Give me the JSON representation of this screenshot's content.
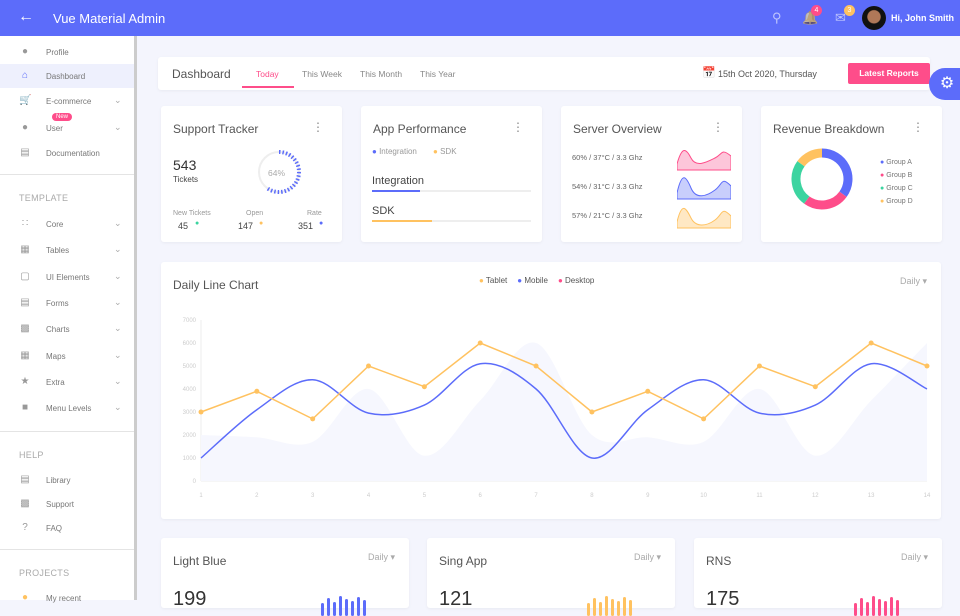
{
  "header": {
    "title": "Vue Material Admin",
    "greeting": "Hi, John Smith",
    "notifications": "4",
    "messages": "3",
    "color": "#5c6cfa"
  },
  "sidebar": {
    "items": [
      {
        "label": "Profile",
        "icon": "account-icon"
      },
      {
        "label": "Dashboard",
        "icon": "home-icon"
      },
      {
        "label": "E-commerce",
        "icon": "cart-icon"
      },
      {
        "label": "User",
        "icon": "person-icon",
        "badge": "New"
      },
      {
        "label": "Documentation",
        "icon": "document-icon"
      }
    ],
    "template_label": "TEMPLATE",
    "template": [
      {
        "label": "Core"
      },
      {
        "label": "Tables"
      },
      {
        "label": "UI Elements"
      },
      {
        "label": "Forms"
      },
      {
        "label": "Charts"
      },
      {
        "label": "Maps"
      },
      {
        "label": "Extra"
      },
      {
        "label": "Menu Levels"
      }
    ],
    "help_label": "HELP",
    "help": [
      {
        "label": "Library"
      },
      {
        "label": "Support"
      },
      {
        "label": "FAQ"
      }
    ],
    "projects_label": "PROJECTS",
    "projects": [
      {
        "label": "My recent"
      }
    ]
  },
  "toolbar": {
    "title": "Dashboard",
    "tabs": [
      "Today",
      "This Week",
      "This Month",
      "This Year"
    ],
    "date": "15th Oct 2020, Thursday",
    "button": "Latest Reports"
  },
  "support": {
    "title": "Support Tracker",
    "count": "543",
    "count_label": "Tickets",
    "percent": "64%",
    "progress": 64,
    "stats": [
      {
        "label": "New Tickets",
        "value": "45",
        "color": "#3cd4a0"
      },
      {
        "label": "Open",
        "value": "147",
        "color": "#ffc260"
      },
      {
        "label": "Rate",
        "value": "351",
        "color": "#5c6cfa"
      }
    ]
  },
  "app": {
    "title": "App Performance",
    "legend": [
      "Integration",
      "SDK"
    ],
    "bars": [
      {
        "label": "Integration",
        "value": 30,
        "color": "#5c6cfa"
      },
      {
        "label": "SDK",
        "value": 38,
        "color": "#ffc260"
      }
    ]
  },
  "server": {
    "title": "Server Overview",
    "rows": [
      "60% / 37°C / 3.3 Ghz",
      "54% / 31°C / 3.3 Ghz",
      "57% / 21°C / 3.3 Ghz"
    ]
  },
  "revenue": {
    "title": "Revenue Breakdown",
    "groups": [
      {
        "label": "Group A",
        "value": 35,
        "color": "#5c6cfa"
      },
      {
        "label": "Group B",
        "value": 25,
        "color": "#fe4d8a"
      },
      {
        "label": "Group C",
        "value": 25,
        "color": "#3cd4a0"
      },
      {
        "label": "Group D",
        "value": 15,
        "color": "#ffc260"
      }
    ]
  },
  "chart_data": {
    "type": "line",
    "title": "Daily Line Chart",
    "period": "Daily",
    "x": [
      1,
      2,
      3,
      4,
      5,
      6,
      7,
      8,
      9,
      10,
      11,
      12,
      13,
      14
    ],
    "ylim": [
      0,
      7000
    ],
    "yticks": [
      0,
      1000,
      2000,
      3000,
      4000,
      5000,
      6000,
      7000
    ],
    "legend_position": "top",
    "series": [
      {
        "name": "Tablet",
        "color": "#ffc260",
        "values": [
          3000,
          3900,
          2700,
          5000,
          4100,
          6000,
          5000,
          3000,
          3900,
          2700,
          5000,
          4100,
          6000,
          5000
        ]
      },
      {
        "name": "Mobile",
        "color": "#5c6cfa",
        "values": [
          1000,
          3100,
          4400,
          2950,
          3300,
          5100,
          4000,
          1000,
          3100,
          4400,
          2950,
          3300,
          5100,
          4000
        ]
      },
      {
        "name": "Desktop",
        "color": "#fe4d8a",
        "values": [
          2000,
          1900,
          1700,
          4000,
          1100,
          3500,
          6000,
          2000,
          1900,
          1700,
          4000,
          1100,
          3500,
          6000
        ]
      }
    ]
  },
  "bottom": [
    {
      "title": "Light Blue",
      "period": "Daily",
      "value": "199",
      "color": "#5c6cfa"
    },
    {
      "title": "Sing App",
      "period": "Daily",
      "value": "121",
      "color": "#ffc260"
    },
    {
      "title": "RNS",
      "period": "Daily",
      "value": "175",
      "color": "#fe4d8a"
    }
  ]
}
